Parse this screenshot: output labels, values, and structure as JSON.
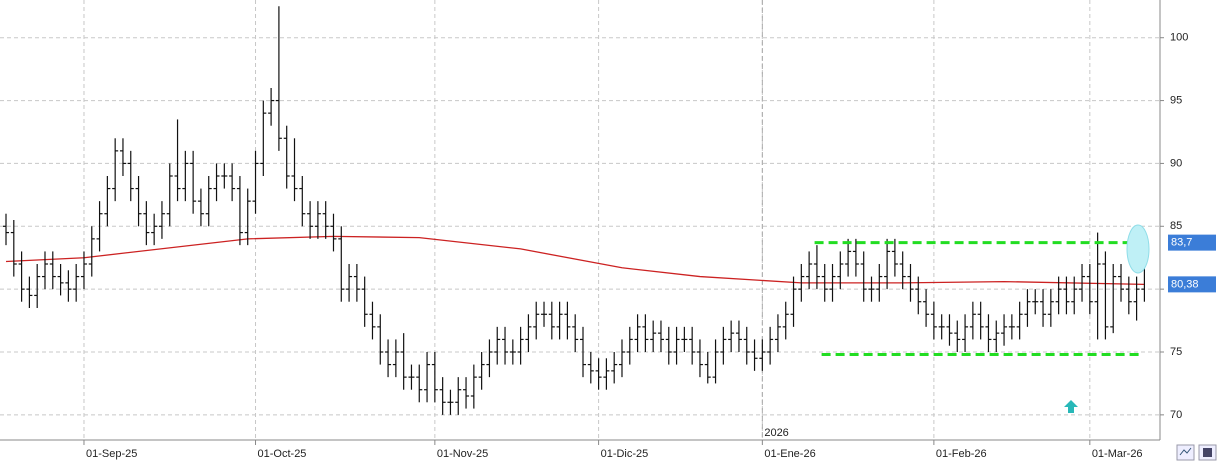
{
  "chart_data": {
    "type": "ohlc",
    "xlim": [
      -0.77,
      148
    ],
    "ylim": [
      68,
      103
    ],
    "yticks": [
      70,
      75,
      80,
      85,
      90,
      95,
      100
    ],
    "xticks": [
      {
        "value": 10,
        "label": "01-Sep-25"
      },
      {
        "value": 32,
        "label": "01-Oct-25"
      },
      {
        "value": 55,
        "label": "01-Nov-25"
      },
      {
        "value": 76,
        "label": "01-Dic-25"
      },
      {
        "value": 97,
        "label": "01-Ene-26"
      },
      {
        "value": 119,
        "label": "01-Feb-26"
      },
      {
        "value": 139,
        "label": "01-Mar-26"
      }
    ],
    "grid": true,
    "color": "#111111",
    "open": [
      85,
      84.5,
      82,
      80,
      79.5,
      81,
      82,
      81,
      80.5,
      80,
      81,
      82,
      84,
      86,
      88,
      91,
      90,
      88,
      86,
      84.5,
      85,
      86,
      89,
      88,
      90,
      87,
      86,
      88,
      89,
      89,
      88,
      84.5,
      87,
      90,
      94,
      95,
      92,
      89,
      88,
      86,
      85,
      86,
      85,
      84,
      80,
      81,
      80,
      78,
      77,
      75,
      74,
      75,
      73,
      73,
      72,
      74,
      72,
      71,
      71,
      72,
      71.5,
      73,
      74,
      75,
      76,
      75,
      75,
      76,
      77,
      78,
      78,
      77,
      78,
      77,
      76,
      74,
      73.5,
      73,
      73.5,
      74,
      75,
      76,
      77,
      76,
      76.5,
      76,
      75,
      76,
      76,
      75,
      74,
      73,
      75,
      76,
      76.5,
      76,
      75,
      74.5,
      75,
      76,
      77,
      78,
      80,
      81,
      82,
      81,
      80,
      81,
      82,
      83,
      82,
      80,
      80,
      81,
      83,
      82,
      81,
      80,
      79,
      78,
      77,
      77,
      76.5,
      76,
      77,
      78,
      77,
      76,
      76.5,
      77,
      77,
      78,
      79,
      79,
      78,
      79,
      80,
      79,
      80,
      81,
      79,
      82,
      77,
      81,
      80,
      79,
      80
    ],
    "high": [
      86,
      85.5,
      83,
      81,
      82,
      83,
      83,
      82,
      81.5,
      82,
      83,
      85,
      87,
      89,
      92,
      92,
      91,
      89,
      87,
      86,
      87,
      90,
      93.5,
      91,
      91,
      88,
      89,
      90,
      90,
      90,
      89,
      88,
      91,
      95,
      96,
      102.5,
      93,
      92,
      89,
      87,
      87,
      87,
      86,
      85,
      82,
      82,
      81,
      79,
      78,
      76,
      76,
      76.5,
      74,
      74,
      75,
      75,
      73,
      72,
      73,
      73,
      74,
      75,
      76,
      77,
      77,
      76,
      77,
      78,
      79,
      79,
      79,
      79,
      79,
      78,
      77,
      75,
      74.5,
      74.5,
      75,
      76,
      77,
      78,
      78,
      77.5,
      77.5,
      77,
      77,
      77,
      77,
      76,
      75,
      76,
      77,
      77.5,
      77.5,
      77,
      76,
      76,
      77,
      78,
      79,
      81,
      82,
      83,
      83.5,
      82,
      82,
      83,
      84,
      84,
      83,
      81,
      82,
      84,
      84,
      83,
      82,
      81,
      80,
      79,
      78,
      78,
      77.5,
      78,
      79,
      79,
      78,
      77.5,
      78,
      78,
      79,
      80,
      80,
      80,
      80,
      81,
      81,
      81,
      82,
      82,
      84.5,
      83,
      82,
      82,
      81,
      81,
      84.2
    ],
    "low": [
      83.5,
      81,
      79,
      78.5,
      78.5,
      80,
      80,
      79.5,
      79,
      79,
      80,
      81,
      83,
      85,
      87,
      89,
      87,
      85,
      83.5,
      83.5,
      84,
      85,
      87,
      87,
      86,
      85,
      85,
      87,
      88,
      87,
      83.5,
      83.5,
      86,
      89,
      93,
      91,
      88,
      87,
      85,
      84,
      84,
      84,
      83,
      79,
      79,
      79,
      77,
      76,
      74,
      73,
      73,
      72,
      72,
      71,
      71,
      71,
      70,
      70,
      70,
      70.5,
      70.5,
      72,
      73,
      74,
      74,
      74,
      74,
      75,
      76,
      77,
      76,
      76,
      76,
      75,
      73,
      72.5,
      72,
      72,
      72.5,
      73,
      74,
      75,
      75,
      75,
      75,
      74,
      74,
      75,
      74,
      73,
      72.5,
      72.5,
      74,
      75,
      75,
      74,
      73.5,
      73.5,
      74,
      75,
      76,
      77,
      79,
      80,
      80,
      79,
      79,
      80,
      81,
      81,
      79,
      79,
      79,
      80,
      81,
      80,
      79,
      78,
      77,
      76,
      76,
      75.5,
      75,
      75,
      76,
      76,
      75,
      75,
      75.5,
      76,
      76,
      77,
      78,
      77,
      77,
      78,
      78,
      78,
      79,
      78,
      76,
      76,
      76.5,
      79,
      78,
      77.5,
      79
    ],
    "close": [
      84.5,
      82,
      80,
      79.5,
      81,
      82,
      81,
      80.5,
      80,
      81,
      82,
      84,
      86,
      88,
      91,
      90,
      88,
      86,
      84.5,
      85,
      86,
      89,
      88,
      90,
      87,
      86,
      88,
      89,
      89,
      88,
      84.5,
      87,
      90,
      94,
      95,
      92,
      89,
      88,
      86,
      85,
      86,
      85,
      84,
      80,
      81,
      80,
      78,
      77,
      75,
      74,
      75,
      73,
      73,
      72,
      74,
      72,
      71,
      71,
      72,
      71.5,
      73,
      74,
      75,
      76,
      75,
      75,
      76,
      77,
      78,
      78,
      77,
      78,
      77,
      76,
      74,
      73.5,
      73,
      73.5,
      74,
      75,
      76,
      77,
      76,
      76.5,
      76,
      75,
      76,
      76,
      75,
      74,
      73,
      75,
      76,
      76.5,
      76,
      75,
      74.5,
      75,
      76,
      77,
      78,
      80,
      81,
      82,
      81,
      80,
      81,
      82,
      83,
      82,
      80,
      80,
      81,
      83,
      82,
      81,
      80,
      79,
      78,
      77,
      77,
      76.5,
      76,
      77,
      78,
      77,
      76,
      76.5,
      77,
      77,
      78,
      79,
      79,
      78,
      79,
      80,
      79,
      80,
      81,
      79,
      82,
      77,
      81,
      80,
      79,
      80,
      83.7
    ],
    "ma": {
      "color": "#cc2222",
      "x": [
        0,
        10,
        31,
        42,
        53,
        66,
        79,
        89,
        102,
        115,
        128,
        146
      ],
      "values": [
        82.2,
        82.5,
        84.0,
        84.2,
        84.1,
        83.2,
        81.7,
        81.0,
        80.5,
        80.5,
        80.6,
        80.38
      ]
    },
    "levels": [
      {
        "value": 83.7,
        "x": [
          103.7,
          145.4
        ],
        "color": "#22dd22"
      },
      {
        "value": 74.8,
        "x": [
          104.6,
          145.4
        ],
        "color": "#22dd22"
      }
    ],
    "last_labels": [
      {
        "value": 83.7,
        "label": "83,7"
      },
      {
        "value": 80.38,
        "label": "80,38"
      }
    ],
    "year_marker": {
      "x": 97,
      "label": "2026"
    }
  }
}
